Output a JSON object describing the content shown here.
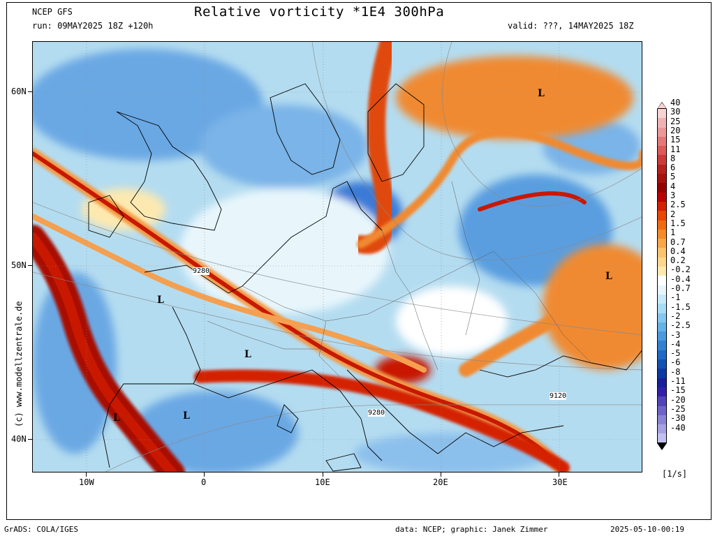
{
  "header": {
    "model": "NCEP GFS",
    "run": "run: 09MAY2025 18Z +120h",
    "title": "Relative vorticity *1E4 300hPa",
    "valid": "valid: ???, 14MAY2025 18Z"
  },
  "axes": {
    "lat_labels": [
      "60N",
      "50N",
      "40N"
    ],
    "lon_labels": [
      "10W",
      "0",
      "10E",
      "20E",
      "30E"
    ]
  },
  "contour_labels": [
    "9280",
    "9280",
    "9120"
  ],
  "low_markers": [
    "L",
    "L",
    "L",
    "L",
    "L",
    "L"
  ],
  "colorbar": {
    "unit": "[1/s]",
    "labels": [
      "40",
      "30",
      "25",
      "20",
      "15",
      "11",
      "8",
      "6",
      "5",
      "4",
      "3",
      "2.5",
      "2",
      "1.5",
      "1",
      "0.7",
      "0.4",
      "0.2",
      "-0.2",
      "-0.4",
      "-0.7",
      "-1",
      "-1.5",
      "-2",
      "-2.5",
      "-3",
      "-4",
      "-5",
      "-6",
      "-8",
      "-11",
      "-15",
      "-20",
      "-25",
      "-30",
      "-40"
    ],
    "colors": [
      "#f7d4d4",
      "#f0b3b3",
      "#eb9898",
      "#e47878",
      "#dc5a5a",
      "#cc3a3a",
      "#b82020",
      "#a81010",
      "#980000",
      "#b80000",
      "#d42000",
      "#e84800",
      "#f06a10",
      "#f48a28",
      "#f8a848",
      "#fbc46c",
      "#fcd88c",
      "#fde9b0",
      "#ffffff",
      "#e8f6fc",
      "#c8eaf8",
      "#a8dcf4",
      "#84c8ee",
      "#64b2e6",
      "#4a9ade",
      "#3282d2",
      "#1e6ac4",
      "#1252b0",
      "#0c3aa0",
      "#18209a",
      "#3420a8",
      "#5244b8",
      "#6e64c8",
      "#8a84d6",
      "#a6a2e2",
      "#c2c0ee"
    ]
  },
  "watermark": "(c) www.modellzentrale.de",
  "footer": {
    "left": "GrADS: COLA/IGES",
    "center": "data: NCEP; graphic: Janek Zimmer",
    "right": "2025-05-10-00:19"
  },
  "colors": {
    "background": "#ffffff",
    "map_base": "#b4dcf0",
    "positive_band": "#e06010",
    "strong_positive": "#a80c00",
    "negative": "#5a9ee0"
  }
}
